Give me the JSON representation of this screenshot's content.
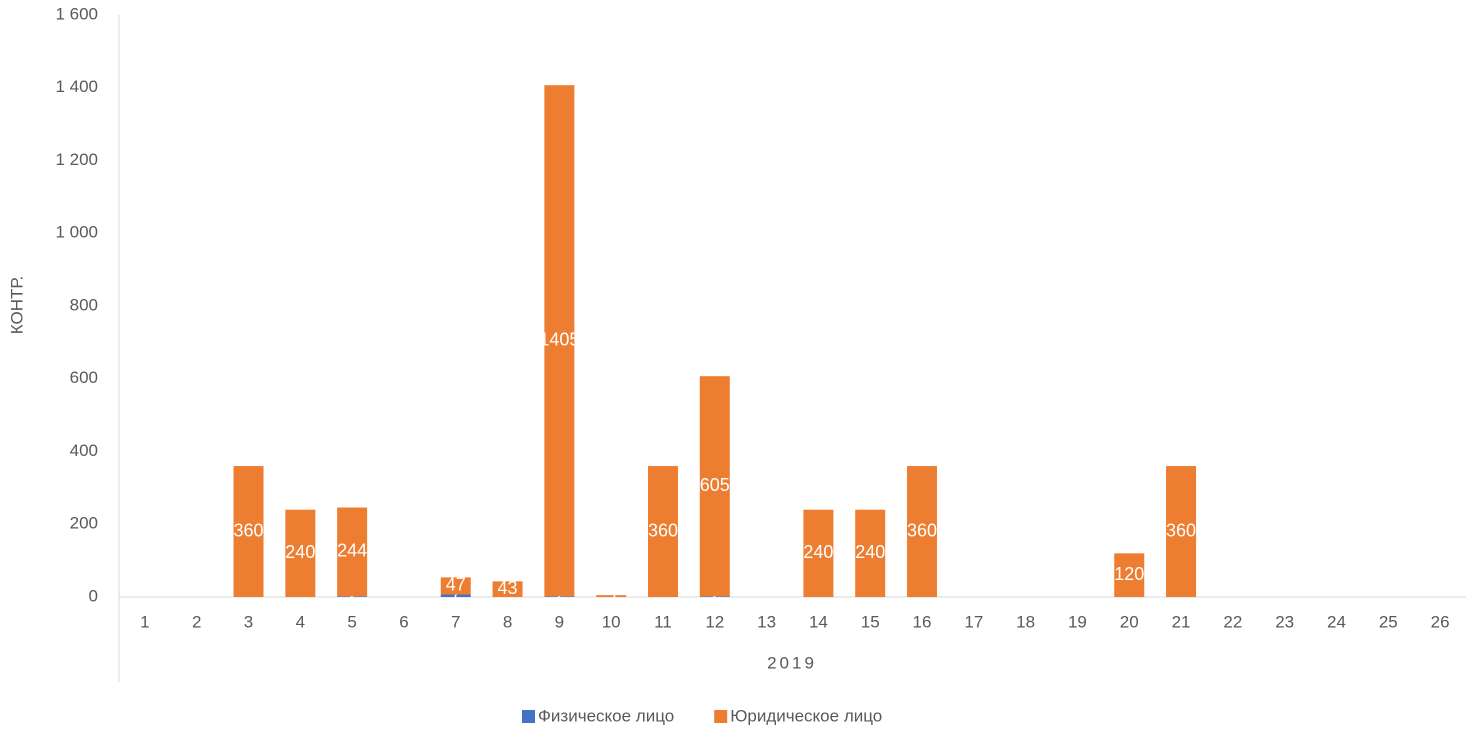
{
  "chart_data": {
    "type": "stacked-bar",
    "y_label": "КОНТР.",
    "group_label": "2019",
    "categories": [
      "1",
      "2",
      "3",
      "4",
      "5",
      "6",
      "7",
      "8",
      "9",
      "10",
      "11",
      "12",
      "13",
      "14",
      "15",
      "16",
      "17",
      "18",
      "19",
      "20",
      "21",
      "22",
      "23",
      "24",
      "25",
      "26"
    ],
    "series": [
      {
        "name": "Физическое лицо",
        "color": "#4472c4",
        "values": [
          null,
          null,
          null,
          null,
          2,
          null,
          7,
          null,
          2,
          null,
          null,
          2,
          null,
          null,
          null,
          null,
          null,
          null,
          null,
          null,
          null,
          null,
          null,
          null,
          null,
          null
        ]
      },
      {
        "name": "Юридическое лицо",
        "color": "#ed7d31",
        "values": [
          null,
          null,
          360,
          240,
          244,
          null,
          47,
          43,
          1405,
          5,
          360,
          605,
          null,
          240,
          240,
          360,
          null,
          null,
          null,
          120,
          360,
          null,
          null,
          null,
          null,
          null
        ]
      }
    ],
    "ylim": [
      0,
      1600
    ],
    "yticks": [
      0,
      200,
      400,
      600,
      800,
      {
        "value": 1000,
        "label": "1 000"
      },
      {
        "value": 1200,
        "label": "1 200"
      },
      {
        "value": 1400,
        "label": "1 400"
      },
      {
        "value": 1600,
        "label": "1 600"
      }
    ],
    "legend": "bottom"
  }
}
